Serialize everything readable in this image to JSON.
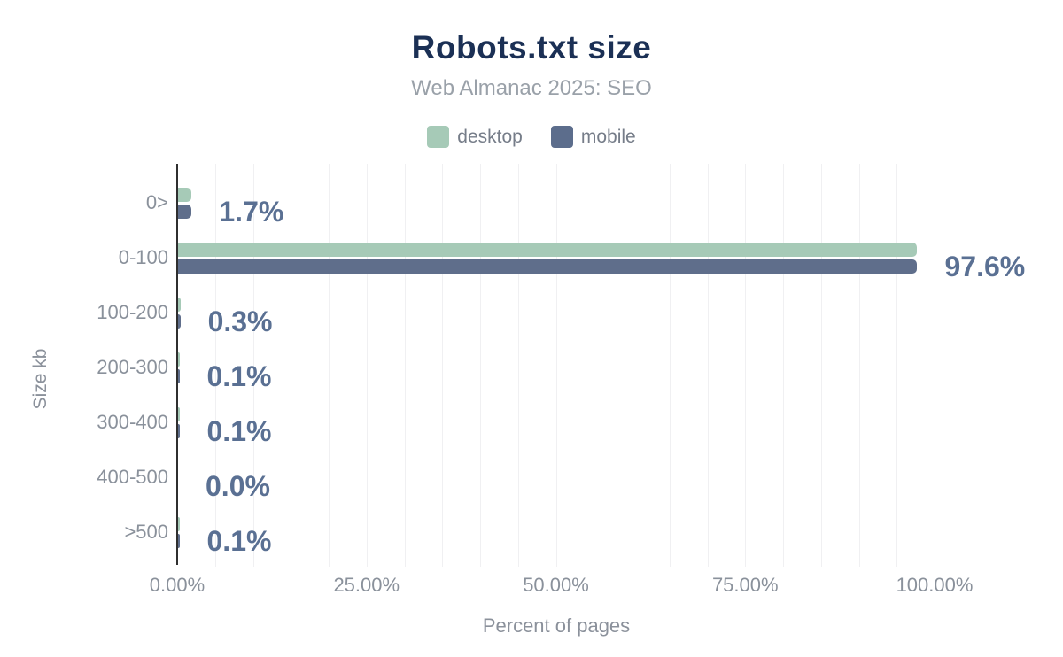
{
  "chart": {
    "title": "Robots.txt size",
    "subtitle": "Web Almanac 2025: SEO",
    "xlabel": "Percent of pages",
    "ylabel": "Size kb"
  },
  "legend": {
    "items": [
      {
        "label": "desktop",
        "color": "#a6cab7"
      },
      {
        "label": "mobile",
        "color": "#5c6d8c"
      }
    ]
  },
  "colors": {
    "title": "#1b3055",
    "subtitle": "#9aa1a9",
    "legend_text": "#767d89",
    "axis_line": "#2f2f2f",
    "gridline": "#f0f0f2",
    "tick_label": "#8a919b",
    "category_label": "#8a919b",
    "value_label": "#5a7093",
    "axis_title": "#8b919b",
    "desktop_bar": "#a6cab7",
    "mobile_bar": "#5f6e8b",
    "background": "#ffffff"
  },
  "chart_data": {
    "type": "bar",
    "orientation": "horizontal",
    "title": "Robots.txt size",
    "subtitle": "Web Almanac 2025: SEO",
    "categories": [
      "0>",
      "0-100",
      "100-200",
      "200-300",
      "300-400",
      "400-500",
      ">500"
    ],
    "series": [
      {
        "name": "desktop",
        "values": [
          1.8,
          97.5,
          0.3,
          0.1,
          0.1,
          0.0,
          0.1
        ]
      },
      {
        "name": "mobile",
        "values": [
          1.7,
          97.6,
          0.3,
          0.1,
          0.1,
          0.0,
          0.1
        ]
      }
    ],
    "value_labels": [
      "1.7%",
      "97.6%",
      "0.3%",
      "0.1%",
      "0.1%",
      "0.0%",
      "0.1%"
    ],
    "xlabel": "Percent of pages",
    "ylabel": "Size kb",
    "xlim": [
      0,
      100
    ],
    "x_ticks": [
      {
        "value": 0,
        "label": "0.00%"
      },
      {
        "value": 25,
        "label": "25.00%"
      },
      {
        "value": 50,
        "label": "50.00%"
      },
      {
        "value": 75,
        "label": "75.00%"
      },
      {
        "value": 100,
        "label": "100.00%"
      }
    ],
    "grid": {
      "show": true,
      "vertical_step_pct": 5
    },
    "legend_position": "top"
  }
}
